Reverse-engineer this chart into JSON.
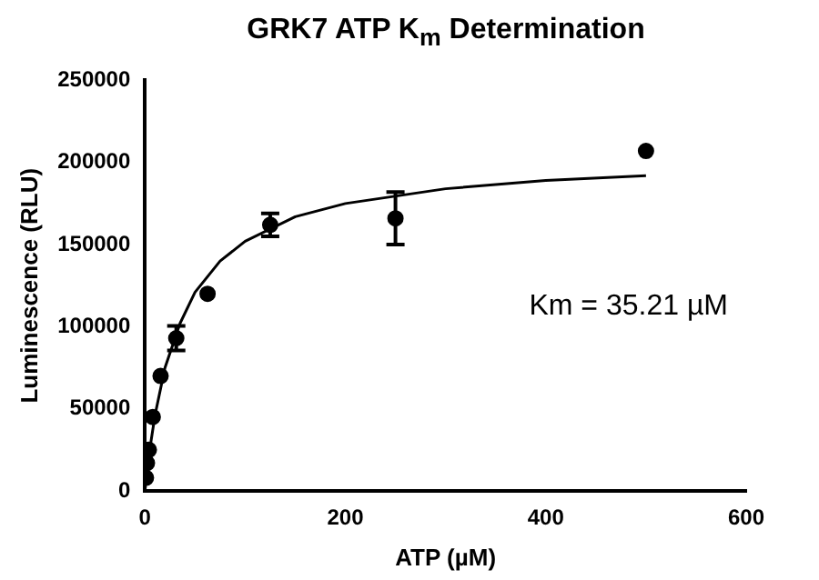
{
  "chart_data": {
    "type": "scatter",
    "title": "GRK7 ATP K$_{m}$ Determination",
    "xlabel": "ATP (µM)",
    "ylabel": "Luminescence (RLU)",
    "xlim": [
      0,
      600
    ],
    "xticks": [
      0,
      200,
      400,
      600
    ],
    "ylim": [
      0,
      250000
    ],
    "yticks": [
      0,
      50000,
      100000,
      150000,
      200000,
      250000
    ],
    "grid": false,
    "legend": false,
    "marker": "circle",
    "annotations": [
      "Km = 35.21 µM"
    ],
    "series": [
      {
        "color": "#000000",
        "x": [
          1,
          2,
          3.9,
          7.8,
          15.6,
          31.25,
          62.5,
          125,
          250,
          500
        ],
        "values": [
          8000,
          17000,
          25000,
          45000,
          70000,
          93000,
          120000,
          162000,
          166000,
          207000
        ],
        "errors": [
          null,
          null,
          null,
          null,
          null,
          7500,
          null,
          7000,
          16000,
          null
        ]
      },
      {
        "type": "line",
        "marker": "none",
        "color": "#000000",
        "x": [
          0,
          2,
          5,
          10,
          20,
          35,
          50,
          75,
          100,
          150,
          200,
          300,
          400,
          500
        ],
        "values": [
          0,
          11000,
          26000,
          46000,
          75000,
          102000,
          121000,
          140000,
          152000,
          167000,
          175000,
          184000,
          189000,
          192000
        ]
      }
    ]
  }
}
